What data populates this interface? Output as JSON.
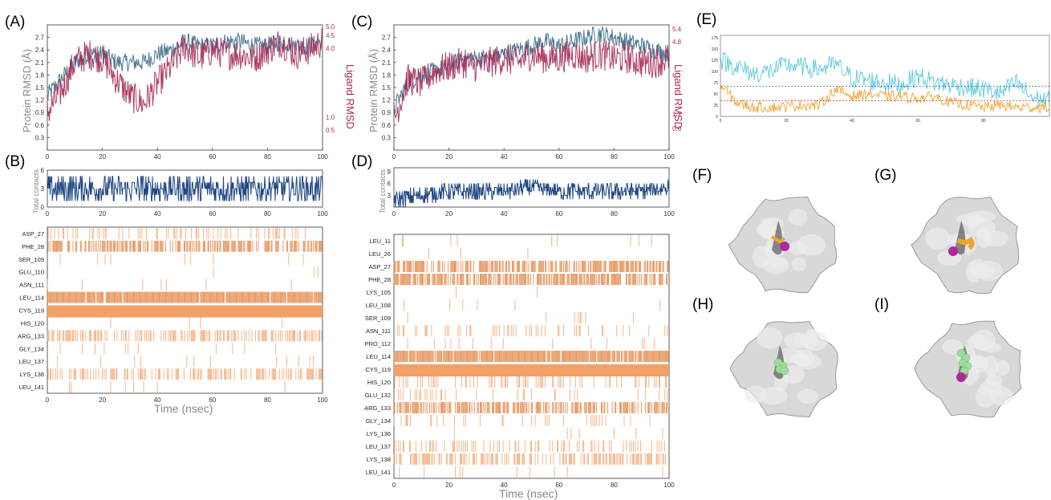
{
  "panels": {
    "A": "(A)",
    "B": "(B)",
    "C": "(C)",
    "D": "(D)",
    "E": "(E)",
    "F": "(F)",
    "G": "(G)",
    "H": "(H)",
    "I": "(I)"
  },
  "colors": {
    "protein": "#4d7a96",
    "ligand": "#a52a55",
    "contacts": "#1f4782",
    "heat": "#f2a066",
    "heat_dark": "#e07b35",
    "cyan": "#5bc8dc",
    "orange": "#f0a22a",
    "blue_dash": "#3a5fa8",
    "red_dash": "#c0392b",
    "surface": "#d8d8d8",
    "magenta": "#b0289a",
    "green": "#9fdc9c"
  },
  "labels": {
    "protein_rmsd": "Protein RMSD (Å)",
    "ligand_rmsd": "Ligand RMSD",
    "total_contacts": "Total contacts",
    "time": "Time (nsec)"
  },
  "chart_data": [
    {
      "panel": "A",
      "type": "line",
      "ylabel": "Protein RMSD (Å)",
      "ylabel_right": "Ligand RMSD",
      "xlim": [
        0,
        100
      ],
      "ylim": [
        0,
        3.0
      ],
      "xticks": [
        0,
        20,
        40,
        60,
        80,
        100
      ],
      "yticks": [
        0.3,
        0.6,
        0.9,
        1.2,
        1.5,
        1.8,
        2.1,
        2.4,
        2.7
      ],
      "yticks_right": [
        "5.0",
        "4.5",
        "4.0",
        "1.0",
        "0.5"
      ],
      "series": [
        {
          "x": [
            0,
            5,
            10,
            15,
            20,
            25,
            30,
            35,
            40,
            45,
            50,
            55,
            60,
            65,
            70,
            75,
            80,
            85,
            90,
            95,
            100
          ],
          "values": [
            1.3,
            1.7,
            2.1,
            2.3,
            2.3,
            2.1,
            2.1,
            2.1,
            2.3,
            2.4,
            2.6,
            2.5,
            2.5,
            2.6,
            2.6,
            2.5,
            2.5,
            2.6,
            2.5,
            2.5,
            2.6
          ]
        },
        {
          "x": [
            0,
            5,
            10,
            15,
            20,
            25,
            30,
            35,
            40,
            45,
            50,
            55,
            60,
            65,
            70,
            75,
            80,
            85,
            90,
            95,
            100
          ],
          "values": [
            0.9,
            1.4,
            2.1,
            2.3,
            2.2,
            1.7,
            1.3,
            1.1,
            1.6,
            2.0,
            2.5,
            2.2,
            2.4,
            2.3,
            2.3,
            2.2,
            2.4,
            2.6,
            2.3,
            2.4,
            2.6
          ]
        }
      ]
    },
    {
      "panel": "C",
      "type": "line",
      "ylabel": "Protein RMSD (Å)",
      "ylabel_right": "Ligand RMSD",
      "xlim": [
        0,
        100
      ],
      "ylim": [
        0,
        3.0
      ],
      "xticks": [
        0,
        20,
        40,
        60,
        80,
        100
      ],
      "yticks": [
        0.3,
        0.6,
        0.9,
        1.2,
        1.5,
        1.8,
        2.1,
        2.4,
        2.7
      ],
      "yticks_right": [
        "5.4",
        "4.8",
        "1.2",
        "0.6"
      ],
      "series": [
        {
          "x": [
            0,
            5,
            10,
            15,
            20,
            25,
            30,
            35,
            40,
            45,
            50,
            55,
            60,
            65,
            70,
            75,
            80,
            85,
            90,
            95,
            100
          ],
          "values": [
            1.0,
            1.6,
            1.8,
            1.9,
            2.0,
            2.2,
            2.2,
            2.2,
            2.3,
            2.4,
            2.5,
            2.6,
            2.5,
            2.6,
            2.7,
            2.8,
            2.7,
            2.6,
            2.5,
            2.4,
            2.3
          ]
        },
        {
          "x": [
            0,
            5,
            10,
            15,
            20,
            25,
            30,
            35,
            40,
            45,
            50,
            55,
            60,
            65,
            70,
            75,
            80,
            85,
            90,
            95,
            100
          ],
          "values": [
            0.7,
            1.7,
            1.6,
            1.9,
            2.0,
            2.1,
            2.0,
            2.1,
            2.2,
            2.1,
            2.3,
            2.2,
            2.2,
            2.3,
            2.2,
            2.3,
            2.2,
            2.2,
            2.1,
            2.1,
            2.2
          ]
        }
      ]
    },
    {
      "panel": "B",
      "type": "line",
      "ylabel": "Total contacts",
      "xlim": [
        0,
        100
      ],
      "ylim": [
        0,
        6
      ],
      "xticks": [
        0,
        20,
        40,
        60,
        80,
        100
      ],
      "yticks": [
        0,
        3,
        6
      ],
      "series": [
        {
          "x": [
            0,
            10,
            20,
            30,
            40,
            50,
            60,
            70,
            80,
            90,
            100
          ],
          "values": [
            3,
            3,
            3,
            3,
            3,
            3,
            3,
            3,
            3,
            3,
            3
          ]
        }
      ]
    },
    {
      "panel": "D",
      "type": "line",
      "ylabel": "Total contacts",
      "xlim": [
        0,
        100
      ],
      "ylim": [
        0,
        10
      ],
      "xticks": [
        0,
        20,
        40,
        60,
        80,
        100
      ],
      "yticks": [
        3,
        6,
        9
      ],
      "series": [
        {
          "x": [
            0,
            10,
            20,
            30,
            40,
            50,
            60,
            70,
            80,
            90,
            100
          ],
          "values": [
            2,
            3,
            4,
            4,
            4,
            5,
            4,
            4,
            4,
            4,
            5
          ]
        }
      ]
    },
    {
      "panel": "B",
      "type": "heatmap",
      "xlabel": "Time (nsec)",
      "xlim": [
        0,
        100
      ],
      "xticks": [
        0,
        20,
        40,
        60,
        80,
        100
      ],
      "rows": [
        "ASP_27",
        "PHE_28",
        "SER_109",
        "GLU_110",
        "ASN_111",
        "LEU_114",
        "CYS_119",
        "HIS_120",
        "ARG_133",
        "GLY_134",
        "LEU_137",
        "LYS_138",
        "LEU_141"
      ],
      "occupancy": [
        0.25,
        0.55,
        0.05,
        0.01,
        0.02,
        0.95,
        1.0,
        0.01,
        0.5,
        0.03,
        0.03,
        0.45,
        0.02
      ]
    },
    {
      "panel": "D",
      "type": "heatmap",
      "xlabel": "Time (nsec)",
      "xlim": [
        0,
        100
      ],
      "xticks": [
        0,
        20,
        40,
        60,
        80,
        100
      ],
      "rows": [
        "LEU_11",
        "LEU_26",
        "ASP_27",
        "PHE_28",
        "LYS_105",
        "LEU_108",
        "SER_109",
        "ASN_111",
        "PRO_112",
        "LEU_114",
        "CYS_119",
        "HIS_120",
        "GLU_132",
        "ARG_133",
        "GLY_134",
        "LYS_136",
        "LEU_137",
        "LYS_138",
        "LEU_141"
      ],
      "occupancy": [
        0.03,
        0.01,
        0.6,
        0.7,
        0.01,
        0.01,
        0.02,
        0.15,
        0.03,
        0.9,
        1.0,
        0.25,
        0.12,
        0.55,
        0.12,
        0.02,
        0.25,
        0.45,
        0.03
      ]
    },
    {
      "panel": "E",
      "type": "line",
      "xlim": [
        0,
        100
      ],
      "ylim": [
        0,
        180
      ],
      "xticks": [
        0,
        20,
        40,
        60,
        80
      ],
      "yticks": [
        0,
        25,
        50,
        75,
        100,
        125,
        150,
        175
      ],
      "series": [
        {
          "x": [
            0,
            5,
            10,
            15,
            20,
            25,
            30,
            35,
            40,
            45,
            50,
            55,
            60,
            65,
            70,
            75,
            80,
            85,
            90,
            95,
            100
          ],
          "values": [
            125,
            110,
            95,
            100,
            115,
            110,
            105,
            115,
            85,
            80,
            75,
            70,
            90,
            75,
            70,
            65,
            60,
            50,
            75,
            40,
            35
          ]
        },
        {
          "x": [
            0,
            5,
            10,
            15,
            20,
            25,
            30,
            35,
            40,
            45,
            50,
            55,
            60,
            65,
            70,
            75,
            80,
            85,
            90,
            95,
            100
          ],
          "values": [
            70,
            30,
            20,
            20,
            22,
            25,
            25,
            60,
            45,
            50,
            45,
            45,
            40,
            45,
            30,
            25,
            20,
            25,
            20,
            20,
            20
          ]
        }
      ],
      "hlines": [
        67,
        35
      ]
    }
  ]
}
